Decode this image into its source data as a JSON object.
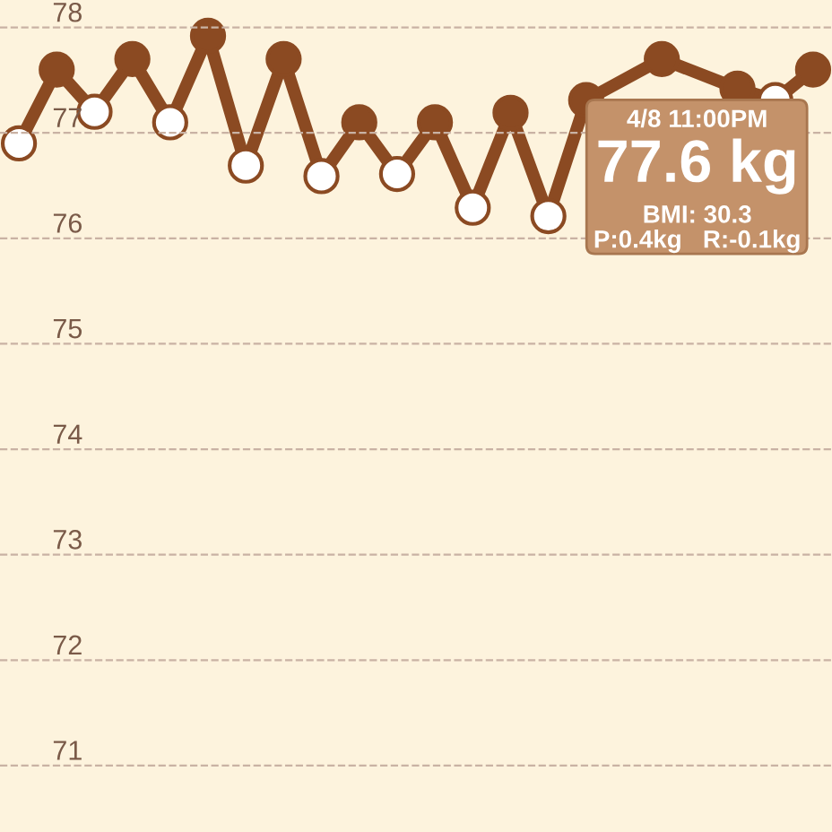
{
  "chart_data": {
    "type": "line",
    "categories": [
      null,
      null,
      null,
      null,
      null,
      null,
      null,
      null,
      null,
      null,
      null,
      null,
      null,
      null,
      null,
      null,
      null,
      null,
      null,
      null,
      null,
      null
    ],
    "series": [
      {
        "color": "#8b4a22",
        "values": [
          76.9,
          77.6,
          77.2,
          77.7,
          77.1,
          77.92,
          76.69,
          77.7,
          76.59,
          77.1,
          76.61,
          77.1,
          76.29,
          77.19,
          76.21,
          77.31,
          null,
          77.7,
          null,
          77.42,
          77.31,
          77.6
        ],
        "colors": [
          "#ffffff",
          "#8b4a22",
          "#ffffff",
          "#8b4a22",
          "#ffffff",
          "#8b4a22",
          "#ffffff",
          "#8b4a22",
          "#ffffff",
          "#8b4a22",
          "#ffffff",
          "#8b4a22",
          "#ffffff",
          "#8b4a22",
          "#ffffff",
          "#8b4a22",
          "#ffffff",
          "#8b4a22",
          "#ffffff",
          "#8b4a22",
          "#ffffff",
          "#8b4a22"
        ]
      }
    ],
    "ylim": [
      70.37,
      78.26
    ],
    "yticks": [
      71,
      72,
      73,
      74,
      75,
      76,
      77,
      78
    ],
    "grid": "y",
    "marker": "circle",
    "line_style": "solid",
    "tick_labels": "y",
    "annotations": [
      "4/8 11:00PM",
      "77.6 kg",
      "BMI: 30.3",
      "P:0.4kg   R:-0.1kg"
    ]
  }
}
